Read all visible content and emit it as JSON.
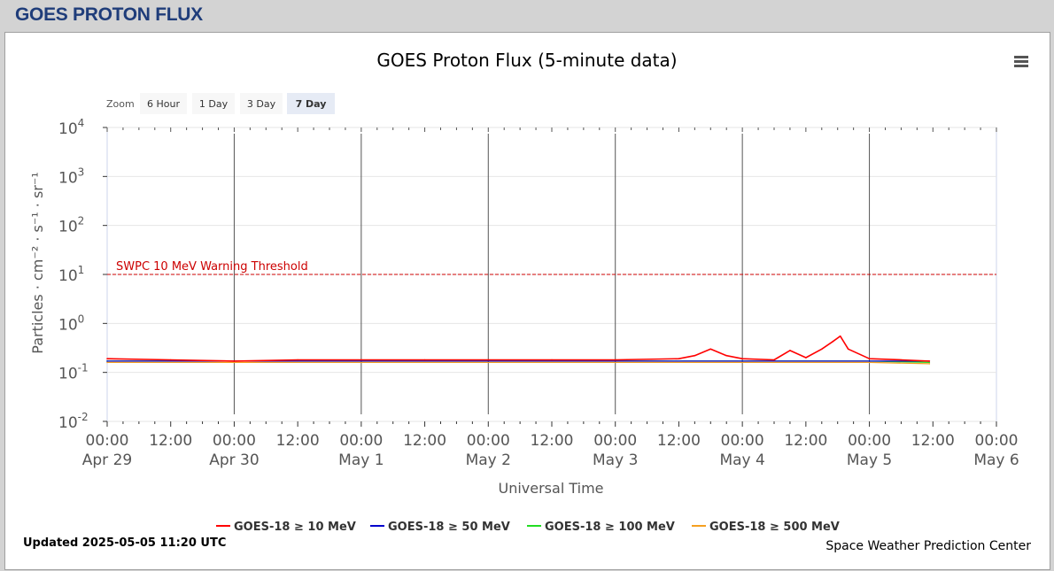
{
  "page": {
    "header_title": "GOES PROTON FLUX"
  },
  "chart_data": {
    "type": "line",
    "title": "GOES Proton Flux (5-minute data)",
    "xlabel": "Universal Time",
    "ylabel": "Particles · cm⁻² · s⁻¹ · sr⁻¹",
    "yscale": "log",
    "ylim": [
      0.01,
      10000
    ],
    "y_ticks": [
      {
        "base": "10",
        "exp": "-2"
      },
      {
        "base": "10",
        "exp": "-1"
      },
      {
        "base": "10",
        "exp": "0"
      },
      {
        "base": "10",
        "exp": "1"
      },
      {
        "base": "10",
        "exp": "2"
      },
      {
        "base": "10",
        "exp": "3"
      },
      {
        "base": "10",
        "exp": "4"
      }
    ],
    "xlim": [
      "2025-04-29 00:00",
      "2025-05-06 00:00"
    ],
    "x_ticks": [
      {
        "time": "00:00",
        "date": "Apr 29"
      },
      {
        "time": "12:00",
        "date": ""
      },
      {
        "time": "00:00",
        "date": "Apr 30"
      },
      {
        "time": "12:00",
        "date": ""
      },
      {
        "time": "00:00",
        "date": "May 1"
      },
      {
        "time": "12:00",
        "date": ""
      },
      {
        "time": "00:00",
        "date": "May 2"
      },
      {
        "time": "12:00",
        "date": ""
      },
      {
        "time": "00:00",
        "date": "May 3"
      },
      {
        "time": "12:00",
        "date": ""
      },
      {
        "time": "00:00",
        "date": "May 4"
      },
      {
        "time": "12:00",
        "date": ""
      },
      {
        "time": "00:00",
        "date": "May 5"
      },
      {
        "time": "12:00",
        "date": ""
      },
      {
        "time": "00:00",
        "date": "May 6"
      }
    ],
    "threshold": {
      "label": "SWPC 10 MeV Warning Threshold",
      "value": 10,
      "color": "#cc0000"
    },
    "grid": true,
    "legend_position": "bottom",
    "series": [
      {
        "name": "GOES-18 ≥ 10 MeV",
        "color": "#ff0000",
        "x": [
          "2025-04-29 00:00",
          "2025-04-29 12:00",
          "2025-04-30 00:00",
          "2025-04-30 12:00",
          "2025-05-01 00:00",
          "2025-05-01 12:00",
          "2025-05-02 00:00",
          "2025-05-02 12:00",
          "2025-05-03 00:00",
          "2025-05-03 12:00",
          "2025-05-03 15:00",
          "2025-05-03 18:00",
          "2025-05-03 21:00",
          "2025-05-04 00:00",
          "2025-05-04 06:00",
          "2025-05-04 09:00",
          "2025-05-04 12:00",
          "2025-05-04 15:00",
          "2025-05-04 17:00",
          "2025-05-04 18:30",
          "2025-05-04 20:00",
          "2025-05-05 00:00",
          "2025-05-05 06:00",
          "2025-05-05 11:20"
        ],
        "values": [
          0.19,
          0.18,
          0.17,
          0.18,
          0.18,
          0.18,
          0.18,
          0.18,
          0.18,
          0.19,
          0.22,
          0.3,
          0.22,
          0.19,
          0.18,
          0.28,
          0.2,
          0.3,
          0.42,
          0.55,
          0.3,
          0.19,
          0.18,
          0.17
        ]
      },
      {
        "name": "GOES-18 ≥ 50 MeV",
        "color": "#0000cc",
        "x": [
          "2025-04-29 00:00",
          "2025-04-30 00:00",
          "2025-05-01 00:00",
          "2025-05-02 00:00",
          "2025-05-03 00:00",
          "2025-05-04 00:00",
          "2025-05-05 00:00",
          "2025-05-05 11:20"
        ],
        "values": [
          0.17,
          0.17,
          0.17,
          0.17,
          0.17,
          0.17,
          0.17,
          0.17
        ]
      },
      {
        "name": "GOES-18 ≥ 100 MeV",
        "color": "#22dd22",
        "x": [
          "2025-04-29 00:00",
          "2025-04-30 00:00",
          "2025-05-01 00:00",
          "2025-05-02 00:00",
          "2025-05-03 00:00",
          "2025-05-04 00:00",
          "2025-05-05 00:00",
          "2025-05-05 11:20"
        ],
        "values": [
          0.17,
          0.17,
          0.17,
          0.17,
          0.17,
          0.17,
          0.17,
          0.16
        ]
      },
      {
        "name": "GOES-18 ≥ 500 MeV",
        "color": "#f5a020",
        "x": [
          "2025-04-29 00:00",
          "2025-04-30 00:00",
          "2025-05-01 00:00",
          "2025-05-02 00:00",
          "2025-05-03 00:00",
          "2025-05-04 00:00",
          "2025-05-05 00:00",
          "2025-05-05 11:20"
        ],
        "values": [
          0.16,
          0.16,
          0.16,
          0.16,
          0.16,
          0.16,
          0.16,
          0.15
        ]
      }
    ],
    "updated": "Updated 2025-05-05 11:20 UTC",
    "credit": "Space Weather Prediction Center",
    "zoom": {
      "label": "Zoom",
      "buttons": [
        "6 Hour",
        "1 Day",
        "3 Day",
        "7 Day"
      ],
      "selected": "7 Day"
    }
  }
}
